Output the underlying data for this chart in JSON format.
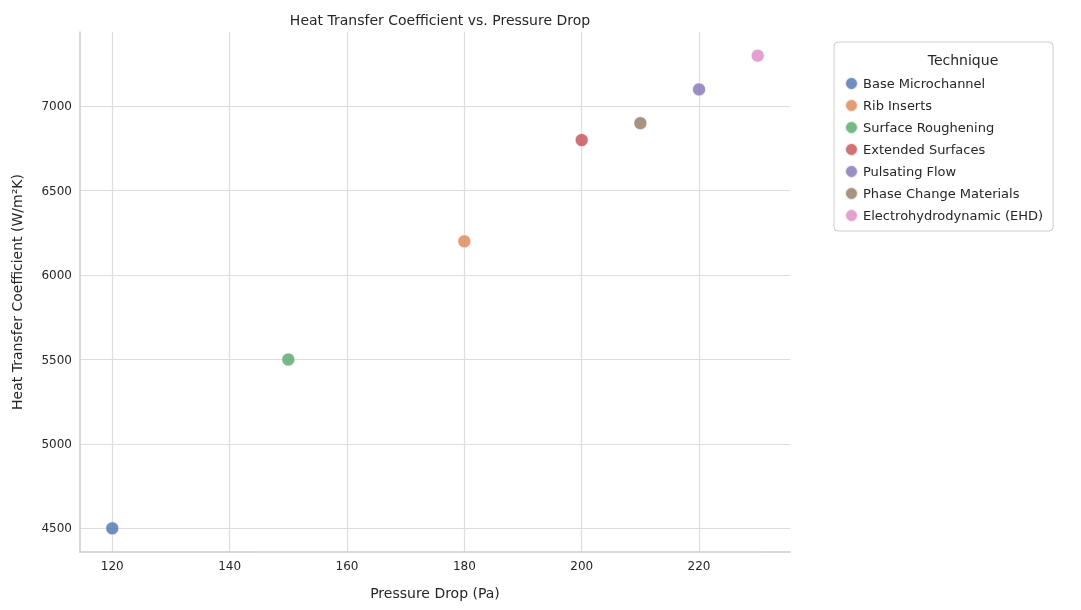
{
  "chart_data": {
    "type": "scatter",
    "title": "Heat Transfer Coefficient vs. Pressure Drop",
    "xlabel": "Pressure Drop (Pa)",
    "ylabel": "Heat Transfer Coefficient (W/m²K)",
    "legend_title": "Technique",
    "legend": "top right",
    "grid": true,
    "marker": "circle",
    "xlim": [
      114.5,
      235.5
    ],
    "xticks": [
      120,
      140,
      160,
      180,
      200,
      220
    ],
    "ylim": [
      4360,
      7440
    ],
    "yticks": [
      4500,
      5000,
      5500,
      6000,
      6500,
      7000
    ],
    "series": [
      {
        "name": "Base Microchannel",
        "color": "#4c72b0",
        "x": [
          120
        ],
        "values": [
          4500
        ]
      },
      {
        "name": "Rib Inserts",
        "color": "#dd8452",
        "x": [
          180
        ],
        "values": [
          6200
        ]
      },
      {
        "name": "Surface Roughening",
        "color": "#55a868",
        "x": [
          150
        ],
        "values": [
          5500
        ]
      },
      {
        "name": "Extended Surfaces",
        "color": "#c44e52",
        "x": [
          200
        ],
        "values": [
          6800
        ]
      },
      {
        "name": "Pulsating Flow",
        "color": "#8172b3",
        "x": [
          220
        ],
        "values": [
          7100
        ]
      },
      {
        "name": "Phase Change Materials",
        "color": "#937860",
        "x": [
          210
        ],
        "values": [
          6900
        ]
      },
      {
        "name": "Electrohydrodynamic (EHD)",
        "color": "#da8bc3",
        "x": [
          230
        ],
        "values": [
          7300
        ]
      }
    ]
  }
}
